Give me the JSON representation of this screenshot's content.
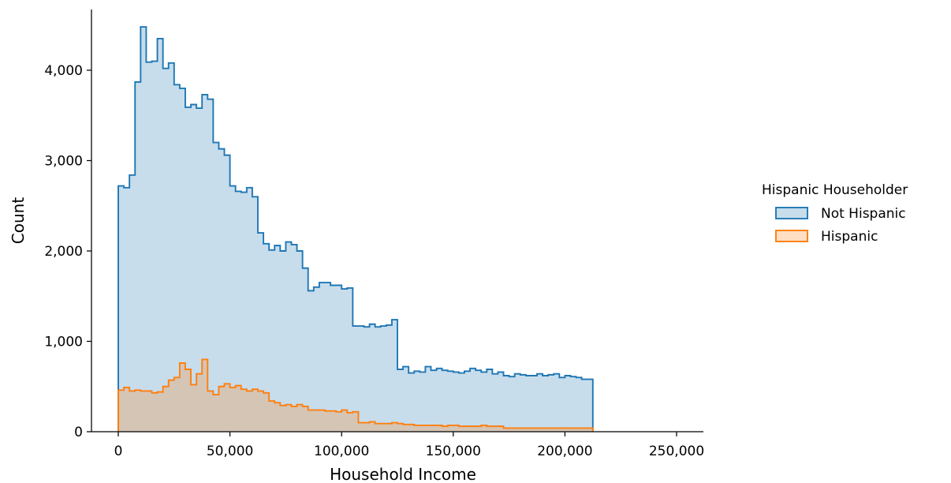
{
  "chart_data": {
    "type": "histogram",
    "title": "",
    "xlabel": "Household Income",
    "ylabel": "Count",
    "xlim": [
      -12500,
      262500
    ],
    "ylim": [
      0,
      4750
    ],
    "x_ticks": [
      0,
      50000,
      100000,
      150000,
      200000,
      250000
    ],
    "x_tick_labels": [
      "0",
      "50,000",
      "100,000",
      "150,000",
      "200,000",
      "250,000"
    ],
    "y_ticks": [
      0,
      1000,
      2000,
      3000,
      4000
    ],
    "y_tick_labels": [
      "0",
      "1,000",
      "2,000",
      "3,000",
      "4,000"
    ],
    "bin_edges_start": 0,
    "bin_width": 2500,
    "grid": false,
    "legend": {
      "title": "Hispanic Householder",
      "placement": "right"
    },
    "series": [
      {
        "name": "Not Hispanic",
        "color": "#1f77b4",
        "values": [
          2720,
          2700,
          2840,
          3870,
          4480,
          4090,
          4100,
          4350,
          4020,
          4080,
          3840,
          3800,
          3590,
          3620,
          3580,
          3730,
          3680,
          3200,
          3130,
          3060,
          2720,
          2660,
          2650,
          2700,
          2600,
          2200,
          2080,
          2010,
          2060,
          2000,
          2100,
          2070,
          2000,
          1810,
          1560,
          1600,
          1650,
          1650,
          1620,
          1620,
          1580,
          1590,
          1170,
          1170,
          1160,
          1190,
          1160,
          1170,
          1180,
          1240,
          690,
          720,
          650,
          670,
          660,
          720,
          680,
          700,
          680,
          670,
          660,
          650,
          670,
          700,
          680,
          660,
          690,
          640,
          660,
          620,
          610,
          640,
          630,
          620,
          620,
          640,
          620,
          630,
          640,
          600,
          620,
          610,
          600,
          580,
          580
        ]
      },
      {
        "name": "Hispanic",
        "color": "#ff7f0e",
        "values": [
          460,
          490,
          450,
          460,
          450,
          450,
          430,
          440,
          500,
          570,
          600,
          760,
          690,
          520,
          640,
          800,
          450,
          410,
          500,
          530,
          490,
          510,
          470,
          450,
          470,
          450,
          430,
          340,
          320,
          290,
          300,
          280,
          300,
          280,
          240,
          240,
          240,
          230,
          230,
          220,
          240,
          210,
          220,
          100,
          100,
          110,
          90,
          90,
          90,
          100,
          90,
          80,
          80,
          70,
          70,
          70,
          70,
          70,
          60,
          70,
          70,
          60,
          60,
          60,
          60,
          70,
          60,
          60,
          60,
          40,
          40,
          40,
          40,
          40,
          40,
          40,
          40,
          40,
          40,
          40,
          40,
          40,
          40,
          40,
          40
        ]
      }
    ]
  }
}
